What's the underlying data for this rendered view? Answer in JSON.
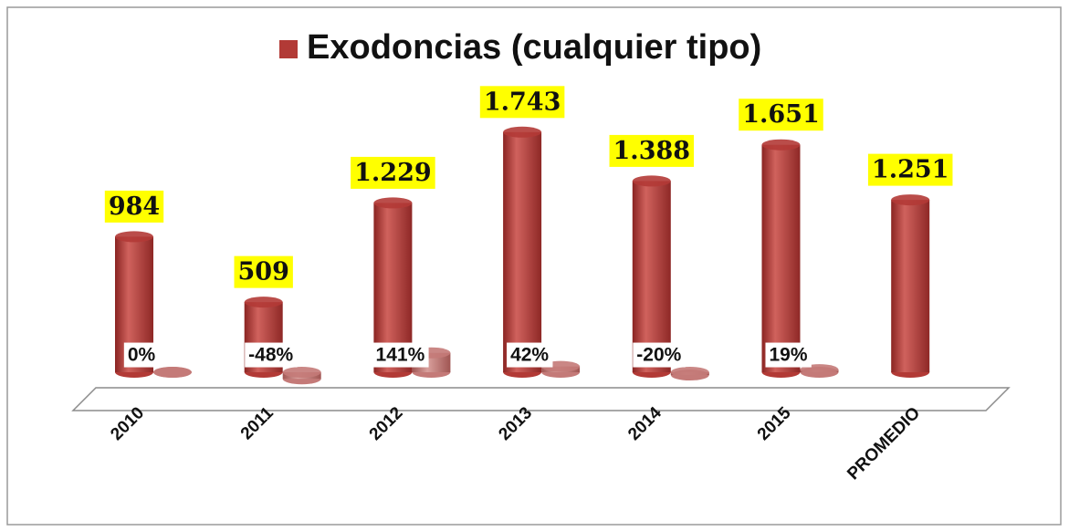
{
  "chart_data": {
    "type": "bar3d",
    "series": [
      {
        "name": "Exodoncias (cualquier tipo)",
        "color": "#b23a36",
        "values": [
          984,
          509,
          1229,
          1743,
          1388,
          1651,
          1251
        ],
        "value_labels": [
          "984",
          "509",
          "1.229",
          "1.743",
          "1.388",
          "1.651",
          "1.251"
        ]
      },
      {
        "color": "#c47a78",
        "values": [
          0,
          -48,
          141,
          42,
          -20,
          19,
          null
        ],
        "value_labels": [
          "0%",
          "-48%",
          "141%",
          "42%",
          "-20%",
          "19%",
          null
        ]
      }
    ],
    "categories": [
      "2010",
      "2011",
      "2012",
      "2013",
      "2014",
      "2015",
      "PROMEDIO"
    ],
    "ylim": [
      0,
      2000
    ]
  }
}
